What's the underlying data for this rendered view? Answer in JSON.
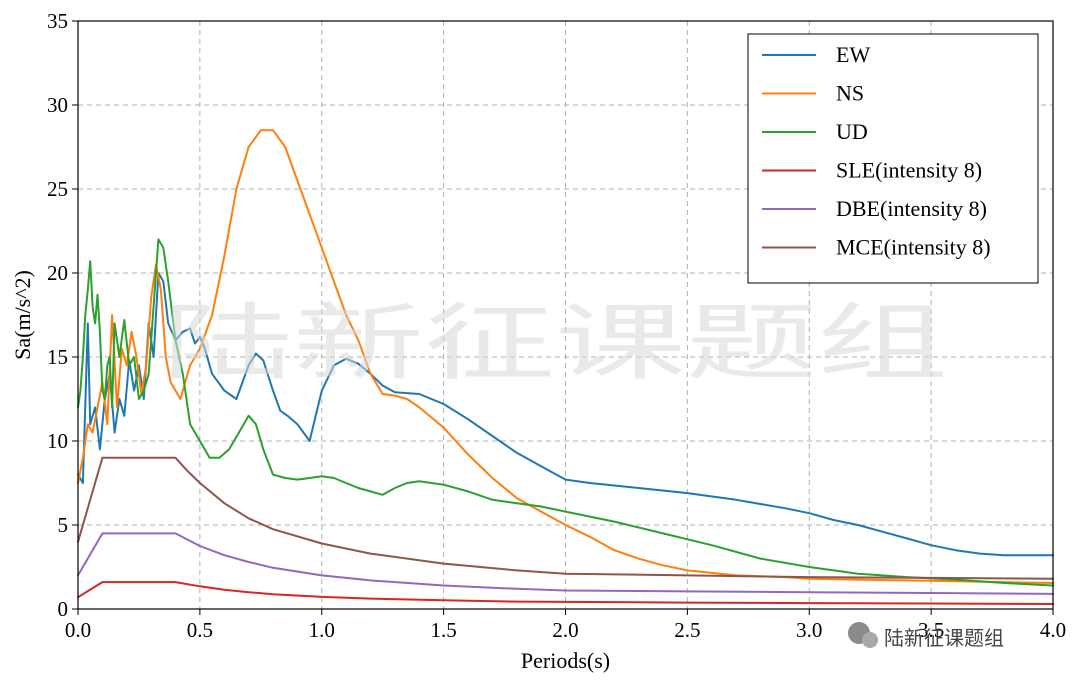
{
  "watermark": {
    "text": "陆新征课题组",
    "badge_text": "陆新征课题组"
  },
  "chart_data": {
    "type": "line",
    "xlabel": "Periods(s)",
    "ylabel": "Sa(m/s^2)",
    "xlim": [
      0,
      4.0
    ],
    "ylim": [
      0,
      35
    ],
    "xticks": [
      0.0,
      0.5,
      1.0,
      1.5,
      2.0,
      2.5,
      3.0,
      3.5,
      4.0
    ],
    "xtick_labels": [
      "0.0",
      "0.5",
      "1.0",
      "1.5",
      "2.0",
      "2.5",
      "3.0",
      "3.5",
      "4.0"
    ],
    "yticks": [
      0,
      5,
      10,
      15,
      20,
      25,
      30,
      35
    ],
    "ytick_labels": [
      "0",
      "5",
      "10",
      "15",
      "20",
      "25",
      "30",
      "35"
    ],
    "grid": true,
    "legend_position": "top-right",
    "series": [
      {
        "name": "EW",
        "color": "#1f77b4",
        "x": [
          0,
          0.02,
          0.04,
          0.05,
          0.07,
          0.09,
          0.11,
          0.13,
          0.15,
          0.17,
          0.19,
          0.21,
          0.23,
          0.25,
          0.27,
          0.29,
          0.31,
          0.33,
          0.35,
          0.37,
          0.4,
          0.43,
          0.46,
          0.48,
          0.5,
          0.52,
          0.55,
          0.6,
          0.65,
          0.7,
          0.73,
          0.76,
          0.8,
          0.83,
          0.86,
          0.9,
          0.95,
          1.0,
          1.05,
          1.1,
          1.15,
          1.2,
          1.25,
          1.3,
          1.4,
          1.5,
          1.6,
          1.7,
          1.8,
          1.9,
          2.0,
          2.1,
          2.3,
          2.5,
          2.7,
          2.9,
          3.0,
          3.1,
          3.2,
          3.3,
          3.4,
          3.5,
          3.6,
          3.7,
          3.8,
          3.9,
          4.0
        ],
        "y": [
          8.0,
          7.5,
          17.0,
          11.0,
          12.0,
          9.5,
          12.5,
          14.0,
          10.5,
          12.5,
          11.5,
          14.8,
          13.0,
          14.5,
          12.5,
          17.0,
          15.0,
          20.0,
          19.5,
          17.0,
          16.0,
          16.5,
          16.7,
          15.8,
          16.2,
          15.5,
          14.0,
          13.0,
          12.5,
          14.5,
          15.2,
          14.8,
          13.0,
          11.8,
          11.5,
          11.0,
          10.0,
          13.0,
          14.5,
          14.9,
          14.6,
          14.0,
          13.3,
          12.9,
          12.8,
          12.2,
          11.3,
          10.3,
          9.3,
          8.5,
          7.7,
          7.5,
          7.2,
          6.9,
          6.5,
          6.0,
          5.7,
          5.3,
          5.0,
          4.6,
          4.2,
          3.8,
          3.5,
          3.3,
          3.2,
          3.2,
          3.2
        ]
      },
      {
        "name": "NS",
        "color": "#ff7f0e",
        "x": [
          0,
          0.02,
          0.04,
          0.06,
          0.08,
          0.1,
          0.12,
          0.14,
          0.16,
          0.18,
          0.2,
          0.22,
          0.24,
          0.26,
          0.28,
          0.3,
          0.32,
          0.34,
          0.36,
          0.38,
          0.42,
          0.46,
          0.5,
          0.55,
          0.6,
          0.65,
          0.7,
          0.75,
          0.8,
          0.85,
          0.9,
          0.95,
          1.0,
          1.05,
          1.1,
          1.15,
          1.2,
          1.25,
          1.3,
          1.35,
          1.4,
          1.5,
          1.6,
          1.7,
          1.8,
          1.9,
          2.0,
          2.1,
          2.2,
          2.3,
          2.4,
          2.5,
          2.7,
          2.9,
          3.0,
          3.2,
          3.4,
          3.6,
          3.8,
          4.0
        ],
        "y": [
          7.5,
          9.0,
          11.0,
          10.5,
          12.0,
          13.5,
          11.0,
          17.5,
          12.0,
          15.5,
          14.5,
          16.5,
          15.0,
          12.8,
          14.5,
          18.5,
          20.5,
          19.0,
          15.0,
          13.5,
          12.5,
          14.5,
          15.5,
          17.5,
          21.0,
          25.0,
          27.5,
          28.5,
          28.5,
          27.5,
          25.5,
          23.5,
          21.5,
          19.5,
          17.5,
          16.0,
          14.0,
          12.8,
          12.7,
          12.5,
          12.0,
          10.8,
          9.2,
          7.8,
          6.6,
          5.8,
          5.0,
          4.3,
          3.5,
          3.0,
          2.6,
          2.3,
          2.0,
          1.9,
          1.8,
          1.75,
          1.7,
          1.65,
          1.6,
          1.55
        ]
      },
      {
        "name": "UD",
        "color": "#2ca02c",
        "x": [
          0,
          0.01,
          0.02,
          0.03,
          0.04,
          0.05,
          0.06,
          0.07,
          0.08,
          0.09,
          0.1,
          0.11,
          0.12,
          0.13,
          0.14,
          0.15,
          0.17,
          0.19,
          0.21,
          0.23,
          0.25,
          0.27,
          0.29,
          0.31,
          0.33,
          0.35,
          0.37,
          0.4,
          0.43,
          0.46,
          0.5,
          0.54,
          0.58,
          0.62,
          0.66,
          0.7,
          0.73,
          0.76,
          0.8,
          0.85,
          0.9,
          0.95,
          1.0,
          1.05,
          1.1,
          1.15,
          1.2,
          1.25,
          1.3,
          1.35,
          1.4,
          1.5,
          1.6,
          1.7,
          1.8,
          1.9,
          2.0,
          2.2,
          2.4,
          2.6,
          2.8,
          3.0,
          3.2,
          3.4,
          3.6,
          3.8,
          4.0
        ],
        "y": [
          12.0,
          13.0,
          15.0,
          17.5,
          19.0,
          20.7,
          18.0,
          17.0,
          18.7,
          16.5,
          13.0,
          12.5,
          14.5,
          15.0,
          12.0,
          17.0,
          15.0,
          17.2,
          14.5,
          15.0,
          12.5,
          13.0,
          14.0,
          18.0,
          22.0,
          21.5,
          19.5,
          16.0,
          14.0,
          11.0,
          10.0,
          9.0,
          9.0,
          9.5,
          10.5,
          11.5,
          11.0,
          9.5,
          8.0,
          7.8,
          7.7,
          7.8,
          7.9,
          7.8,
          7.5,
          7.2,
          7.0,
          6.8,
          7.2,
          7.5,
          7.6,
          7.4,
          7.0,
          6.5,
          6.3,
          6.1,
          5.8,
          5.2,
          4.5,
          3.8,
          3.0,
          2.5,
          2.1,
          1.9,
          1.75,
          1.55,
          1.4
        ]
      },
      {
        "name": "SLE(intensity 8)",
        "color": "#d62728",
        "x": [
          0,
          0.1,
          0.4,
          0.5,
          0.6,
          0.7,
          0.8,
          1.0,
          1.2,
          1.5,
          1.8,
          2.0,
          2.5,
          3.0,
          3.5,
          4.0
        ],
        "y": [
          0.7,
          1.6,
          1.6,
          1.35,
          1.15,
          1.0,
          0.88,
          0.72,
          0.62,
          0.52,
          0.44,
          0.42,
          0.38,
          0.35,
          0.33,
          0.3
        ]
      },
      {
        "name": "DBE(intensity 8)",
        "color": "#9467bd",
        "x": [
          0,
          0.1,
          0.4,
          0.5,
          0.6,
          0.7,
          0.8,
          1.0,
          1.2,
          1.5,
          1.8,
          2.0,
          2.5,
          3.0,
          3.5,
          4.0
        ],
        "y": [
          2.0,
          4.5,
          4.5,
          3.75,
          3.2,
          2.8,
          2.45,
          2.0,
          1.7,
          1.4,
          1.2,
          1.1,
          1.05,
          1.0,
          0.95,
          0.9
        ]
      },
      {
        "name": "MCE(intensity 8)",
        "color": "#8c564b",
        "x": [
          0,
          0.1,
          0.4,
          0.45,
          0.5,
          0.6,
          0.7,
          0.8,
          1.0,
          1.2,
          1.5,
          1.8,
          2.0,
          2.5,
          3.0,
          3.5,
          4.0
        ],
        "y": [
          4.0,
          9.0,
          9.0,
          8.2,
          7.5,
          6.3,
          5.4,
          4.75,
          3.9,
          3.3,
          2.7,
          2.3,
          2.1,
          2.0,
          1.9,
          1.85,
          1.8
        ]
      }
    ]
  }
}
